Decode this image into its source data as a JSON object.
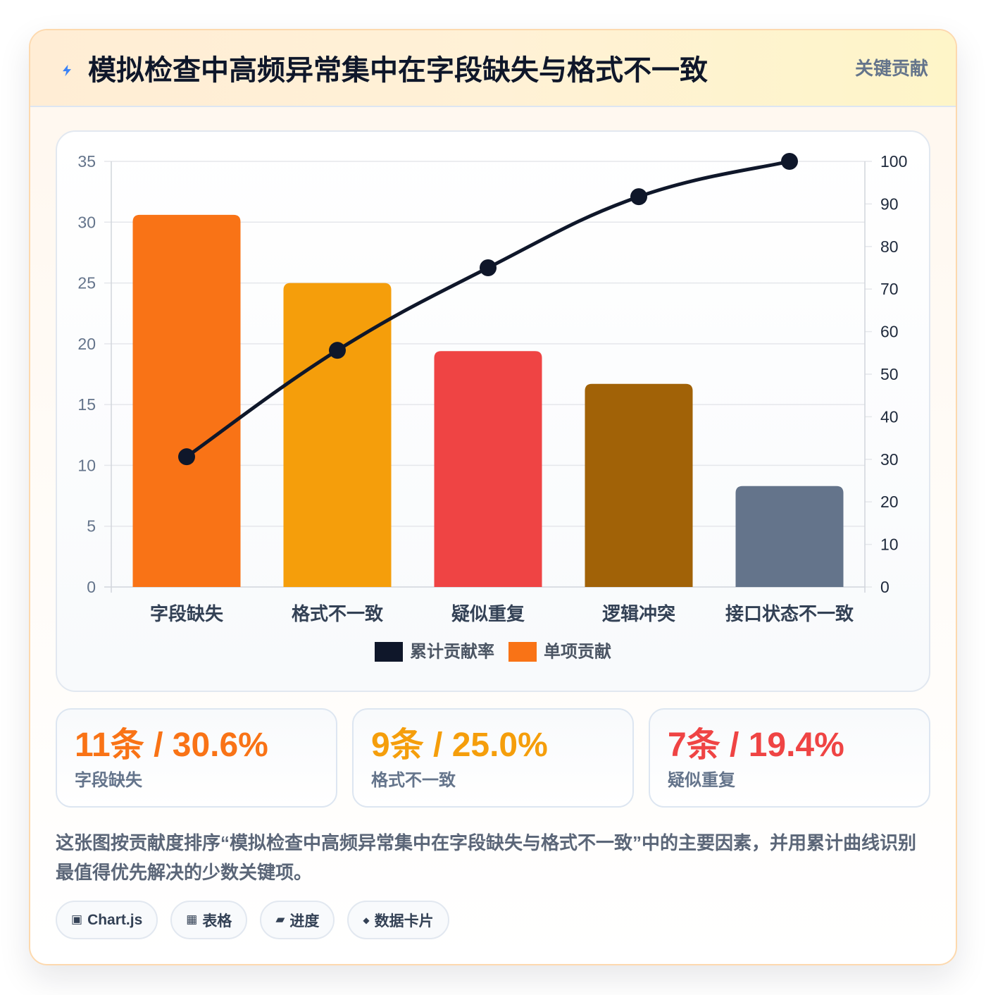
{
  "header": {
    "icon": "lightning-icon",
    "title": "模拟检查中高频异常集中在字段缺失与格式不一致",
    "badge": "关键贡献"
  },
  "chart_data": {
    "type": "bar",
    "categories": [
      "字段缺失",
      "格式不一致",
      "疑似重复",
      "逻辑冲突",
      "接口状态不一致"
    ],
    "series": [
      {
        "name": "累计贡献率",
        "type": "line",
        "axis": "right",
        "color": "#0f172a",
        "values": [
          30.6,
          55.6,
          75.0,
          91.7,
          100.0
        ]
      },
      {
        "name": "单项贡献",
        "type": "bar",
        "axis": "left",
        "colors": [
          "#f97316",
          "#f59e0b",
          "#ef4444",
          "#a16207",
          "#64748b"
        ],
        "values": [
          30.6,
          25.0,
          19.4,
          16.7,
          8.3
        ]
      }
    ],
    "y_left": {
      "range": [
        0,
        35
      ],
      "ticks": [
        0,
        5,
        10,
        15,
        20,
        25,
        30,
        35
      ]
    },
    "y_right": {
      "range": [
        0,
        100
      ],
      "ticks": [
        0,
        10,
        20,
        30,
        40,
        50,
        60,
        70,
        80,
        90,
        100
      ]
    },
    "grid": true,
    "legend": "bottom"
  },
  "stats": [
    {
      "value": "11条 / 30.6%",
      "label": "字段缺失",
      "color": "#f97316"
    },
    {
      "value": "9条 / 25.0%",
      "label": "格式不一致",
      "color": "#f59e0b"
    },
    {
      "value": "7条 / 19.4%",
      "label": "疑似重复",
      "color": "#ef4444"
    }
  ],
  "description": "这张图按贡献度排序“模拟检查中高频异常集中在字段缺失与格式不一致”中的主要因素，并用累计曲线识别最值得优先解决的少数关键项。",
  "tags": [
    {
      "icon": "chart-box-icon",
      "label": "Chart.js"
    },
    {
      "icon": "table-grid-icon",
      "label": "表格"
    },
    {
      "icon": "progress-bar-icon",
      "label": "进度"
    },
    {
      "icon": "diamond-icon",
      "label": "数据卡片"
    }
  ]
}
